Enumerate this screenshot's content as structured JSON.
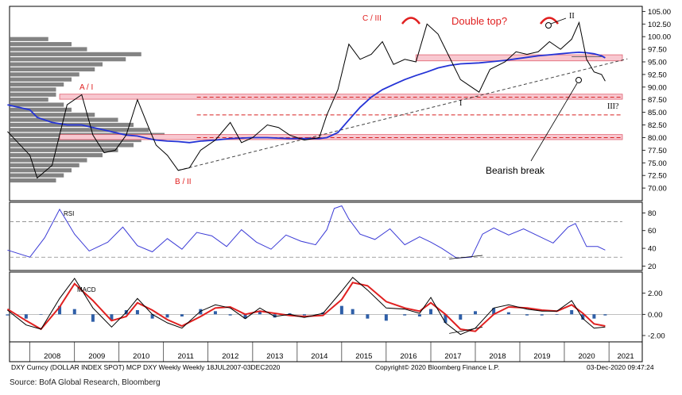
{
  "chart_data": [
    {
      "type": "line",
      "panel": "price",
      "y_scale": "linear",
      "ylim": [
        67.5,
        106.0
      ],
      "y_ticks": [
        "105.00",
        "102.50",
        "100.00",
        "97.50",
        "95.00",
        "92.50",
        "90.00",
        "87.50",
        "85.00",
        "82.50",
        "80.00",
        "77.50",
        "75.00",
        "72.50",
        "70.00"
      ],
      "x": [
        "2007-07",
        "2008-01",
        "2008-03",
        "2008-07",
        "2008-11",
        "2009-03",
        "2009-06",
        "2009-09",
        "2009-12",
        "2010-03",
        "2010-06",
        "2010-09",
        "2010-11",
        "2011-02",
        "2011-05",
        "2011-08",
        "2011-11",
        "2012-03",
        "2012-07",
        "2012-10",
        "2013-01",
        "2013-05",
        "2013-08",
        "2013-11",
        "2014-03",
        "2014-07",
        "2014-09",
        "2014-12",
        "2015-03",
        "2015-06",
        "2015-09",
        "2015-12",
        "2016-03",
        "2016-06",
        "2016-09",
        "2016-12",
        "2017-03",
        "2017-06",
        "2017-09",
        "2018-02",
        "2018-05",
        "2018-09",
        "2018-12",
        "2019-03",
        "2019-06",
        "2019-09",
        "2019-12",
        "2020-03",
        "2020-05",
        "2020-07",
        "2020-09",
        "2020-11",
        "2020-12"
      ],
      "series": [
        {
          "values": [
            81.2,
            76.5,
            72.0,
            74.5,
            86.5,
            88.5,
            80.5,
            77.0,
            77.5,
            80.5,
            87.5,
            82.0,
            78.5,
            76.5,
            73.5,
            74.0,
            77.5,
            79.5,
            83.0,
            79.0,
            80.0,
            82.5,
            82.0,
            80.5,
            79.5,
            80.0,
            84.5,
            89.5,
            98.5,
            95.5,
            96.5,
            99.0,
            94.5,
            95.5,
            95.0,
            102.5,
            100.5,
            96.0,
            91.5,
            89.0,
            93.5,
            95.0,
            97.0,
            96.5,
            97.0,
            99.0,
            97.5,
            99.5,
            102.8,
            95.5,
            93.0,
            92.5,
            91.2
          ]
        },
        {
          "values": [
            86.5,
            85.5,
            84.0,
            83.0,
            82.5,
            82.5,
            82.0,
            81.5,
            81.0,
            80.5,
            80.3,
            79.8,
            79.5,
            79.3,
            79.2,
            79.0,
            79.3,
            79.5,
            79.8,
            79.9,
            80.0,
            80.0,
            79.9,
            79.8,
            79.8,
            79.8,
            80.0,
            81.0,
            83.5,
            86.0,
            88.0,
            89.5,
            90.5,
            91.5,
            92.3,
            93.0,
            93.8,
            94.3,
            94.6,
            94.8,
            95.0,
            95.3,
            95.6,
            95.9,
            96.2,
            96.4,
            96.6,
            96.8,
            96.9,
            96.8,
            96.6,
            96.2,
            95.8
          ]
        }
      ],
      "hlines": [
        88.0,
        84.5,
        80.0
      ],
      "shaded_bands": [
        [
          95.2,
          96.4
        ],
        [
          87.6,
          88.6
        ],
        [
          79.6,
          80.6
        ]
      ],
      "trendline": {
        "from": [
          "2011-05",
          73.5
        ],
        "to": [
          "2021-06",
          95.6
        ]
      },
      "resistance_line": {
        "from": [
          "2020-03",
          96.0
        ],
        "to": [
          "2020-11",
          96.0
        ]
      },
      "annotations": [
        "C / III",
        "Double top?",
        "II",
        "A / I",
        "B / II",
        "I",
        "III?",
        "Bearish break"
      ],
      "volume_profile": {
        "price_levels": [
          99.5,
          98.5,
          97.5,
          96.5,
          95.5,
          94.5,
          93.5,
          92.5,
          91.5,
          90.5,
          89.5,
          88.5,
          87.5,
          86.5,
          85.5,
          84.5,
          83.5,
          82.5,
          81.5,
          80.5,
          79.5,
          78.5,
          77.5,
          76.5,
          75.5,
          74.5,
          73.5,
          72.5,
          71.5
        ],
        "volume": [
          0.25,
          0.4,
          0.5,
          0.85,
          0.75,
          0.6,
          0.55,
          0.45,
          0.4,
          0.35,
          0.3,
          0.3,
          0.25,
          0.35,
          0.4,
          0.55,
          0.7,
          0.8,
          0.9,
          1.0,
          0.85,
          0.8,
          0.7,
          0.6,
          0.5,
          0.45,
          0.4,
          0.35,
          0.3
        ]
      }
    },
    {
      "type": "line",
      "panel": "RSI",
      "title": "RSI",
      "ylim": [
        15,
        92
      ],
      "y_ticks": [
        "80",
        "60",
        "40",
        "20"
      ],
      "hlines": [
        70,
        30
      ],
      "x": [
        "2007-07",
        "2008-01",
        "2008-05",
        "2008-09",
        "2009-01",
        "2009-05",
        "2009-10",
        "2010-02",
        "2010-06",
        "2010-10",
        "2011-02",
        "2011-06",
        "2011-10",
        "2012-02",
        "2012-06",
        "2012-10",
        "2013-02",
        "2013-06",
        "2013-10",
        "2014-02",
        "2014-06",
        "2014-09",
        "2014-11",
        "2015-01",
        "2015-03",
        "2015-06",
        "2015-10",
        "2016-02",
        "2016-06",
        "2016-10",
        "2017-01",
        "2017-04",
        "2017-08",
        "2017-12",
        "2018-03",
        "2018-06",
        "2018-10",
        "2019-02",
        "2019-06",
        "2019-10",
        "2020-02",
        "2020-04",
        "2020-07",
        "2020-10",
        "2020-12"
      ],
      "series": [
        {
          "values": [
            38,
            30,
            52,
            84,
            56,
            37,
            47,
            64,
            43,
            36,
            51,
            39,
            58,
            54,
            42,
            61,
            47,
            39,
            55,
            48,
            44,
            61,
            85,
            88,
            73,
            56,
            50,
            62,
            44,
            53,
            47,
            40,
            29,
            30,
            56,
            63,
            55,
            62,
            54,
            46,
            64,
            68,
            42,
            42,
            38
          ]
        }
      ],
      "divergence_line": {
        "from": [
          "2017-06",
          28
        ],
        "to": [
          "2018-03",
          32
        ]
      }
    },
    {
      "type": "line",
      "panel": "MACD",
      "title": "MACD",
      "ylim": [
        -2.6,
        4.0
      ],
      "y_ticks": [
        "2.00",
        "0.00",
        "-2.00"
      ],
      "x": [
        "2007-07",
        "2007-12",
        "2008-04",
        "2008-09",
        "2009-01",
        "2009-06",
        "2009-11",
        "2010-03",
        "2010-06",
        "2010-10",
        "2011-02",
        "2011-06",
        "2011-11",
        "2012-03",
        "2012-07",
        "2012-11",
        "2013-03",
        "2013-07",
        "2013-11",
        "2014-03",
        "2014-08",
        "2015-01",
        "2015-04",
        "2015-08",
        "2016-01",
        "2016-06",
        "2016-10",
        "2017-01",
        "2017-05",
        "2017-09",
        "2018-01",
        "2018-06",
        "2018-10",
        "2019-03",
        "2019-07",
        "2019-11",
        "2020-03",
        "2020-06",
        "2020-09",
        "2020-12"
      ],
      "series": [
        {
          "values": [
            0.4,
            -1.0,
            -1.4,
            1.5,
            3.4,
            0.6,
            -1.2,
            0.2,
            1.5,
            0.0,
            -0.8,
            -1.3,
            0.3,
            0.9,
            0.6,
            -0.4,
            0.6,
            -0.2,
            0.0,
            -0.3,
            0.1,
            2.2,
            3.5,
            2.3,
            0.6,
            0.5,
            0.1,
            1.6,
            -0.8,
            -1.9,
            -1.3,
            0.6,
            0.9,
            0.5,
            0.3,
            0.3,
            1.3,
            -0.4,
            -1.3,
            -1.2
          ]
        },
        {
          "values": [
            0.5,
            -0.6,
            -1.4,
            0.7,
            2.9,
            1.3,
            -0.6,
            -0.2,
            1.1,
            0.4,
            -0.5,
            -1.1,
            -0.2,
            0.6,
            0.7,
            0.0,
            0.3,
            0.1,
            -0.1,
            -0.2,
            -0.1,
            1.4,
            3.0,
            2.7,
            1.2,
            0.6,
            0.3,
            1.1,
            0.0,
            -1.4,
            -1.6,
            0.0,
            0.7,
            0.6,
            0.4,
            0.3,
            0.9,
            0.1,
            -0.9,
            -1.1
          ]
        }
      ],
      "histogram": [
        -0.1,
        -0.4,
        0.0,
        0.8,
        0.5,
        -0.7,
        -0.6,
        0.4,
        0.4,
        -0.4,
        -0.3,
        -0.2,
        0.5,
        0.3,
        -0.1,
        -0.4,
        0.3,
        -0.3,
        0.1,
        -0.1,
        0.2,
        0.8,
        0.5,
        -0.4,
        -0.6,
        -0.1,
        -0.2,
        0.5,
        -0.8,
        -0.5,
        0.3,
        0.6,
        0.2,
        -0.1,
        -0.1,
        0.0,
        0.4,
        -0.5,
        -0.4,
        -0.1
      ],
      "divergence_line": {
        "from": [
          "2017-06",
          -1.8
        ],
        "to": [
          "2018-03",
          -1.2
        ]
      }
    }
  ],
  "x_axis": {
    "years": [
      "2008",
      "2009",
      "2010",
      "2011",
      "2012",
      "2013",
      "2014",
      "2015",
      "2016",
      "2017",
      "2018",
      "2019",
      "2020",
      "2021"
    ]
  },
  "footer": {
    "left": "DXY Curncy (DOLLAR INDEX SPOT) MCP DXY Weekly  Weekly 18JUL2007-03DEC2020",
    "center": "Copyright© 2020 Bloomberg Finance L.P.",
    "right": "03-Dec-2020 09:47:24"
  },
  "source": "Source: BofA Global Research, Bloomberg",
  "colors": {
    "price": "#000000",
    "moving_average": "#2433d6",
    "rsi": "#3b3bd6",
    "macd": "#000000",
    "signal": "#e02020",
    "histogram": "#2f5fa8",
    "band": "#f8c8d0",
    "band_edge": "#e06070",
    "annotation": "#e02020",
    "dashed_red": "#d62020"
  }
}
